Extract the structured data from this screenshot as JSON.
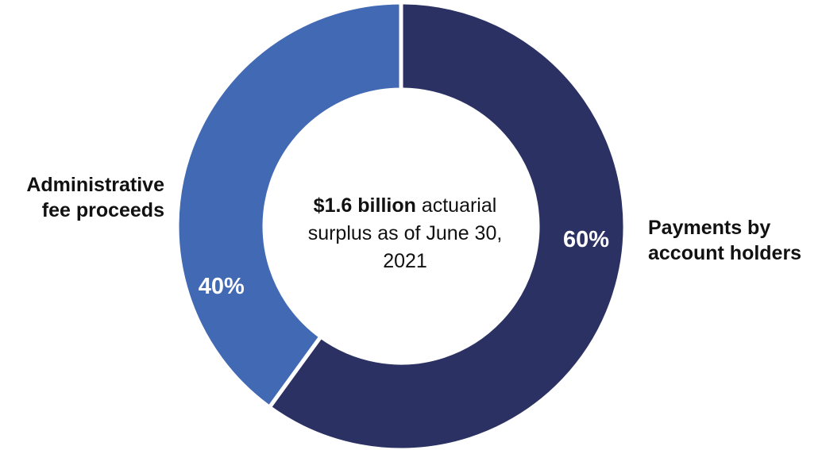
{
  "chart_data": {
    "type": "pie",
    "donut": true,
    "categories": [
      "Payments by account holders",
      "Administrative fee proceeds"
    ],
    "values": [
      60,
      40
    ],
    "value_labels": [
      "60%",
      "40%"
    ],
    "colors": [
      "#2b3263",
      "#4169b4"
    ],
    "center_text": {
      "bold": "$1.6 billion",
      "rest": "actuarial surplus as of June 30, 2021",
      "lines": [
        "actuarial",
        "surplus as of June 30,",
        "2021"
      ]
    },
    "labels": {
      "left_line1": "Administrative",
      "left_line2": "fee proceeds",
      "right_line1": "Payments by",
      "right_line2": "account holders"
    }
  }
}
